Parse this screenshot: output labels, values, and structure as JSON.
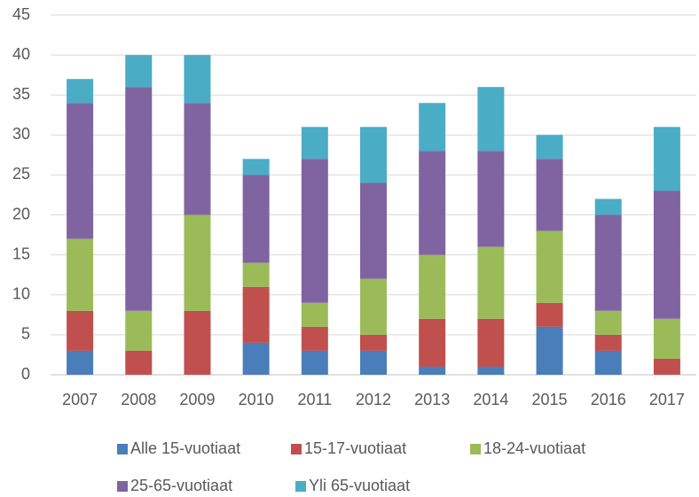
{
  "chart_data": {
    "type": "bar",
    "stacked": true,
    "categories": [
      "2007",
      "2008",
      "2009",
      "2010",
      "2011",
      "2012",
      "2013",
      "2014",
      "2015",
      "2016",
      "2017"
    ],
    "series": [
      {
        "name": "Alle 15-vuotiaat",
        "color": "#4a7ebb",
        "values": [
          3,
          0,
          0,
          4,
          3,
          3,
          1,
          1,
          6,
          3,
          0
        ]
      },
      {
        "name": "15-17-vuotiaat",
        "color": "#c0504d",
        "values": [
          5,
          3,
          8,
          7,
          3,
          2,
          6,
          6,
          3,
          2,
          2
        ]
      },
      {
        "name": "18-24-vuotiaat",
        "color": "#9bbb59",
        "values": [
          9,
          5,
          12,
          3,
          3,
          7,
          8,
          9,
          9,
          3,
          5
        ]
      },
      {
        "name": "25-65-vuotiaat",
        "color": "#8064a2",
        "values": [
          17,
          28,
          14,
          11,
          18,
          12,
          13,
          12,
          9,
          12,
          16
        ]
      },
      {
        "name": "Yli 65-vuotiaat",
        "color": "#4bacc6",
        "values": [
          3,
          4,
          6,
          2,
          4,
          7,
          6,
          8,
          3,
          2,
          8
        ]
      }
    ],
    "ylim": [
      0,
      45
    ],
    "yticks": [
      0,
      5,
      10,
      15,
      20,
      25,
      30,
      35,
      40,
      45
    ],
    "grid": true,
    "legend": "bottom"
  }
}
